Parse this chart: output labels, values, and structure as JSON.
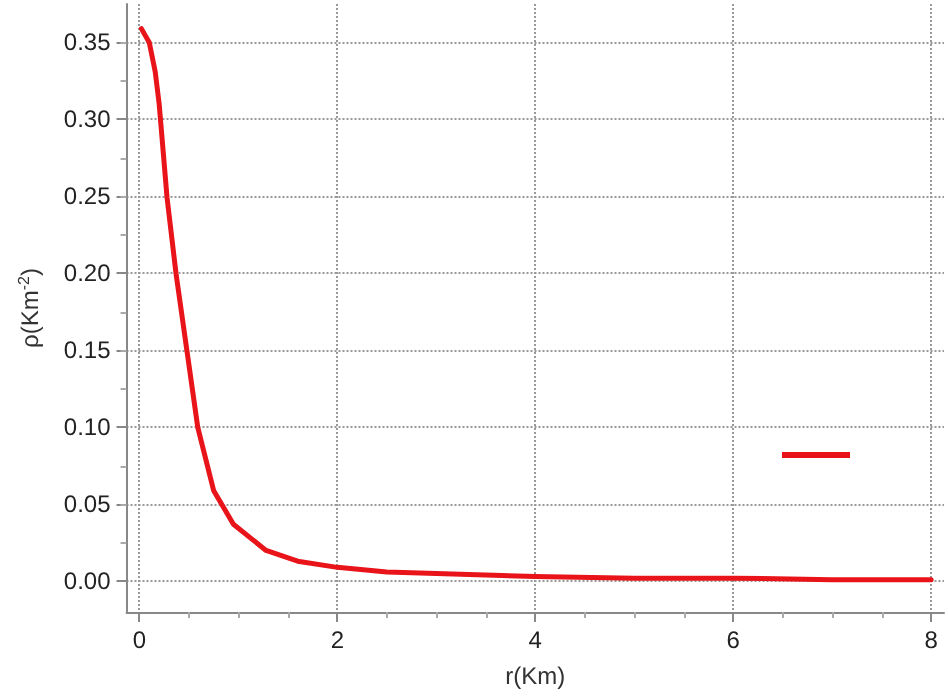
{
  "chart_data": {
    "type": "line",
    "xlabel": "r(Km)",
    "ylabel": "ρ(Km$^{-2}$)",
    "x": [
      0.02,
      0.1,
      0.16,
      0.2,
      0.28,
      0.37,
      0.48,
      0.59,
      0.75,
      0.95,
      1.28,
      1.6,
      2.0,
      2.5,
      3.0,
      4.0,
      5.0,
      6.0,
      7.0,
      8.0
    ],
    "series": [
      {
        "color": "#e8141a",
        "values": [
          0.359,
          0.35,
          0.331,
          0.31,
          0.249,
          0.2,
          0.15,
          0.1,
          0.059,
          0.037,
          0.02,
          0.013,
          0.009,
          0.006,
          0.005,
          0.003,
          0.002,
          0.002,
          0.001,
          0.001
        ]
      }
    ],
    "xlim": [
      -0.13,
      8.13
    ],
    "xticks": [
      0,
      2,
      4,
      6,
      8
    ],
    "ylim": [
      -0.02,
      0.375
    ],
    "yticks": [
      {
        "value": 0,
        "label": "0.00"
      },
      0.05,
      {
        "value": 0.1,
        "label": "0.10"
      },
      0.15,
      {
        "value": 0.2,
        "label": "0.20"
      },
      0.25,
      {
        "value": 0.3,
        "label": "0.30"
      },
      0.35
    ],
    "grid": true,
    "marker": "none",
    "line_style": "solid"
  }
}
